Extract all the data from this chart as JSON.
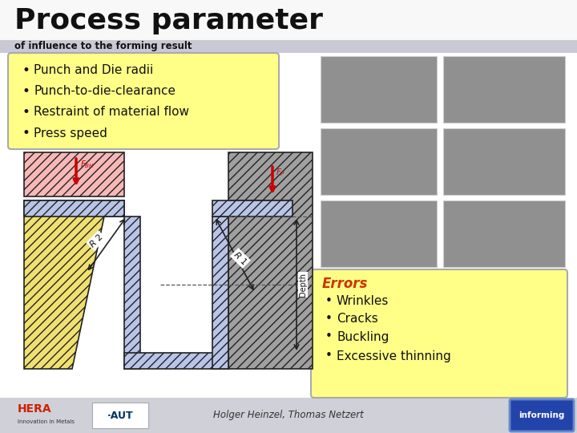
{
  "title": "Process parameter",
  "subtitle": "of influence to the forming result",
  "slide_bg": "#f0f0f0",
  "title_bg": "#ffffff",
  "subtitle_bg": "#d8d8e0",
  "bullet_box": {
    "bg_color": "#ffff88",
    "border_color": "#999999",
    "items": [
      "Punch and Die radii",
      "Punch-to-die-clearance",
      "Restraint of material flow",
      "Press speed"
    ]
  },
  "errors_box": {
    "title": "Errors",
    "title_color": "#cc3300",
    "bg_color": "#ffff88",
    "border_color": "#999999",
    "items": [
      "Wrinkles",
      "Cracks",
      "Buckling",
      "Excessive thinning"
    ]
  },
  "footer_text": "Holger Heinzel, Thomas Netzert",
  "diagram": {
    "pink_color": "#f8b8b8",
    "gray_color": "#a0a0a0",
    "blue_color": "#b8c4e8",
    "yellow_color": "#f0e070",
    "arrow_color": "#cc0000",
    "line_color": "#222222"
  }
}
